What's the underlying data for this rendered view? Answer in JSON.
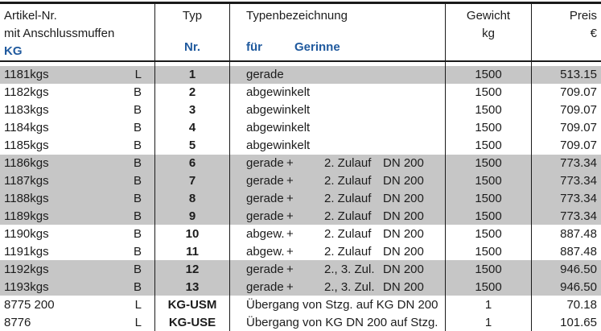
{
  "header": {
    "artikel_line1": "Artikel-Nr.",
    "artikel_line2": "mit Anschlussmuffen",
    "artikel_line3": "KG",
    "typ_line1": "Typ",
    "typ_line3": "Nr.",
    "bez_line1": "Typenbezeichnung",
    "bez_sub_fuer": "für",
    "bez_sub_gerinne": "Gerinne",
    "gewicht_line1": "Gewicht",
    "gewicht_line2": "kg",
    "preis_line1": "Preis",
    "preis_line2": "€"
  },
  "colors": {
    "accent_blue": "#205a9e",
    "row_shade": "#c6c6c6",
    "border": "#1a1a1a"
  },
  "table": {
    "rows": [
      {
        "artikel": "1181kgs",
        "anschluss": "L",
        "typ_nr": "1",
        "bez": "gerade",
        "gewicht": "1500",
        "preis": "513.15",
        "shaded": true
      },
      {
        "artikel": "1182kgs",
        "anschluss": "B",
        "typ_nr": "2",
        "bez": "abgewinkelt",
        "gewicht": "1500",
        "preis": "709.07",
        "shaded": false
      },
      {
        "artikel": "1183kgs",
        "anschluss": "B",
        "typ_nr": "3",
        "bez": "abgewinkelt",
        "gewicht": "1500",
        "preis": "709.07",
        "shaded": false
      },
      {
        "artikel": "1184kgs",
        "anschluss": "B",
        "typ_nr": "4",
        "bez": "abgewinkelt",
        "gewicht": "1500",
        "preis": "709.07",
        "shaded": false
      },
      {
        "artikel": "1185kgs",
        "anschluss": "B",
        "typ_nr": "5",
        "bez": "abgewinkelt",
        "gewicht": "1500",
        "preis": "709.07",
        "shaded": false
      },
      {
        "artikel": "1186kgs",
        "anschluss": "B",
        "typ_nr": "6",
        "bez_parts": {
          "form": "gerade",
          "plus": "+",
          "zulauf": "2. Zulauf",
          "dn": "DN 200"
        },
        "gewicht": "1500",
        "preis": "773.34",
        "shaded": true
      },
      {
        "artikel": "1187kgs",
        "anschluss": "B",
        "typ_nr": "7",
        "bez_parts": {
          "form": "gerade",
          "plus": "+",
          "zulauf": "2. Zulauf",
          "dn": "DN 200"
        },
        "gewicht": "1500",
        "preis": "773.34",
        "shaded": true
      },
      {
        "artikel": "1188kgs",
        "anschluss": "B",
        "typ_nr": "8",
        "bez_parts": {
          "form": "gerade",
          "plus": "+",
          "zulauf": "2. Zulauf",
          "dn": "DN 200"
        },
        "gewicht": "1500",
        "preis": "773.34",
        "shaded": true
      },
      {
        "artikel": "1189kgs",
        "anschluss": "B",
        "typ_nr": "9",
        "bez_parts": {
          "form": "gerade",
          "plus": "+",
          "zulauf": "2. Zulauf",
          "dn": "DN 200"
        },
        "gewicht": "1500",
        "preis": "773.34",
        "shaded": true
      },
      {
        "artikel": "1190kgs",
        "anschluss": "B",
        "typ_nr": "10",
        "bez_parts": {
          "form": "abgew.",
          "plus": "+",
          "zulauf": "2. Zulauf",
          "dn": "DN 200"
        },
        "gewicht": "1500",
        "preis": "887.48",
        "shaded": false
      },
      {
        "artikel": "1191kgs",
        "anschluss": "B",
        "typ_nr": "11",
        "bez_parts": {
          "form": "abgew.",
          "plus": "+",
          "zulauf": "2. Zulauf",
          "dn": "DN 200"
        },
        "gewicht": "1500",
        "preis": "887.48",
        "shaded": false
      },
      {
        "artikel": "1192kgs",
        "anschluss": "B",
        "typ_nr": "12",
        "bez_parts": {
          "form": "gerade",
          "plus": "+",
          "zulauf": "2., 3. Zul.",
          "dn": "DN 200"
        },
        "gewicht": "1500",
        "preis": "946.50",
        "shaded": true
      },
      {
        "artikel": "1193kgs",
        "anschluss": "B",
        "typ_nr": "13",
        "bez_parts": {
          "form": "gerade",
          "plus": "+",
          "zulauf": "2., 3. Zul.",
          "dn": "DN 200"
        },
        "gewicht": "1500",
        "preis": "946.50",
        "shaded": true
      },
      {
        "artikel": "8775 200",
        "anschluss": "L",
        "typ_nr": "KG-USM",
        "bez": "Übergang von Stzg. auf KG DN 200",
        "gewicht": "1",
        "preis": "70.18",
        "shaded": false
      },
      {
        "artikel": "8776",
        "anschluss": "L",
        "typ_nr": "KG-USE",
        "bez": "Übergang von KG DN 200 auf Stzg.",
        "gewicht": "1",
        "preis": "101.65",
        "shaded": false
      }
    ]
  }
}
